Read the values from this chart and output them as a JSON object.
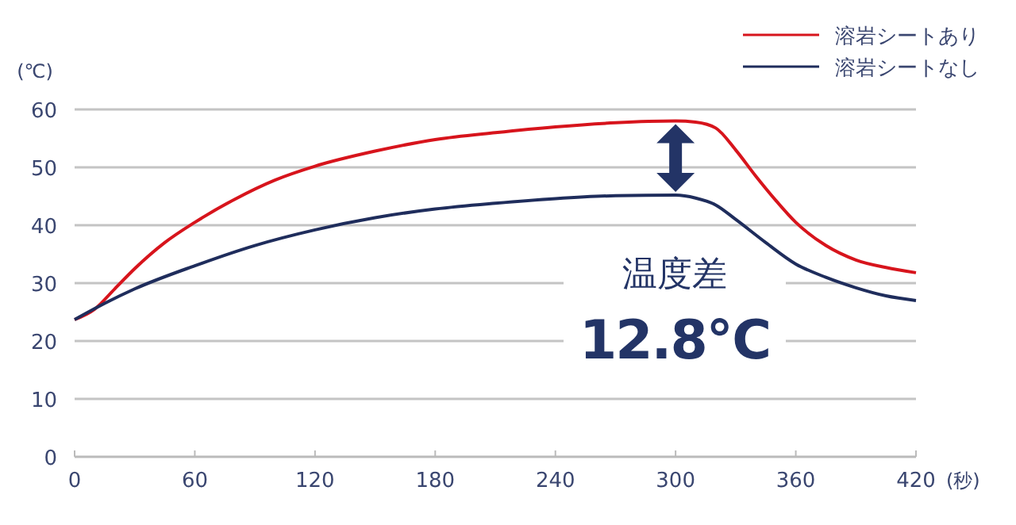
{
  "chart_data": {
    "type": "line",
    "ylabel": "(℃)",
    "xlabel": "(秒)",
    "xlim": [
      0,
      420
    ],
    "xticks": [
      0,
      60,
      120,
      180,
      240,
      300,
      360,
      420
    ],
    "ylim": [
      0,
      60
    ],
    "yticks": [
      0,
      10,
      20,
      30,
      40,
      50,
      60
    ],
    "grid": "y",
    "legend": "top right",
    "line_style": "solid",
    "marker": "none",
    "annotations": [
      "温度差",
      "12.8℃"
    ],
    "series": [
      {
        "name": "溶岩シートあり",
        "color": "#d7141c",
        "x": [
          0,
          10,
          20,
          30,
          45,
          60,
          80,
          100,
          120,
          150,
          180,
          210,
          240,
          270,
          300,
          310,
          320,
          330,
          340,
          350,
          360,
          375,
          390,
          405,
          420
        ],
        "values": [
          23.7,
          25.5,
          29,
          32.5,
          37,
          40.5,
          44.5,
          47.8,
          50.2,
          52.8,
          54.8,
          56,
          57,
          57.7,
          58,
          57.8,
          56.8,
          53,
          48.5,
          44.3,
          40.5,
          36.5,
          34,
          32.7,
          31.8
        ]
      },
      {
        "name": "溶岩シートなし",
        "color": "#1f2d5c",
        "x": [
          0,
          15,
          30,
          60,
          90,
          120,
          150,
          180,
          210,
          240,
          270,
          300,
          310,
          320,
          330,
          345,
          360,
          375,
          390,
          405,
          420
        ],
        "values": [
          23.7,
          26.5,
          29,
          33,
          36.5,
          39.2,
          41.3,
          42.8,
          43.8,
          44.6,
          45.1,
          45.2,
          44.7,
          43.5,
          41,
          37,
          33.3,
          31,
          29.2,
          27.8,
          27
        ]
      }
    ]
  }
}
